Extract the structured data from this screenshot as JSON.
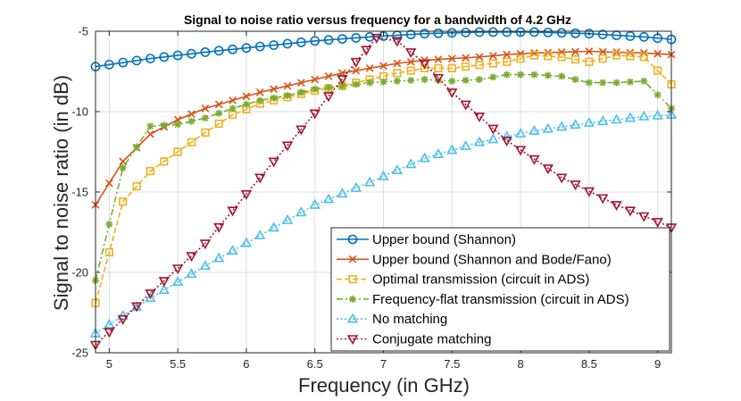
{
  "chart_data": {
    "type": "line",
    "title": "Signal to noise ratio versus frequency for a bandwidth of 4.2 GHz",
    "xlabel": "Frequency (in GHz)",
    "ylabel": "Signal to noise ratio (in dB)",
    "xlim": [
      4.9,
      9.1
    ],
    "ylim": [
      -25,
      -5
    ],
    "xticks": [
      5,
      5.5,
      6,
      6.5,
      7,
      7.5,
      8,
      8.5,
      9
    ],
    "xtick_labels": [
      "5",
      "5.5",
      "6",
      "6.5",
      "7",
      "7.5",
      "8",
      "8.5",
      "9"
    ],
    "yticks": [
      -25,
      -20,
      -15,
      -10,
      -5
    ],
    "ytick_labels": [
      "-25",
      "-20",
      "-15",
      "-10",
      "-5"
    ],
    "grid": true,
    "legend_position": "bottom-right",
    "series": [
      {
        "name": "Upper bound (Shannon)",
        "color": "#0072BD",
        "line": "solid",
        "marker": "circle",
        "x": [
          4.9,
          5.3,
          5.7,
          6.1,
          6.5,
          6.9,
          7.3,
          7.7,
          8.1,
          8.5,
          8.9,
          9.1
        ],
        "y": [
          -7.2,
          -6.7,
          -6.3,
          -5.95,
          -5.6,
          -5.35,
          -5.15,
          -5.05,
          -5.05,
          -5.15,
          -5.35,
          -5.5
        ]
      },
      {
        "name": "Upper bound (Shannon and Bode/Fano)",
        "color": "#D95319",
        "line": "solid",
        "marker": "x",
        "x": [
          4.9,
          5.1,
          5.3,
          5.5,
          5.7,
          5.9,
          6.1,
          6.3,
          6.5,
          6.7,
          6.9,
          7.1,
          7.3,
          7.5,
          7.7,
          7.9,
          8.1,
          8.3,
          8.5,
          8.7,
          8.9,
          9.1
        ],
        "y": [
          -15.8,
          -13.1,
          -11.4,
          -10.5,
          -9.8,
          -9.3,
          -8.8,
          -8.4,
          -8.0,
          -7.6,
          -7.3,
          -7.0,
          -6.8,
          -6.7,
          -6.6,
          -6.45,
          -6.35,
          -6.3,
          -6.25,
          -6.3,
          -6.35,
          -6.45
        ]
      },
      {
        "name": "Optimal transmission (circuit in ADS)",
        "color": "#EDB120",
        "line": "dashed",
        "marker": "square",
        "x": [
          4.9,
          5.1,
          5.3,
          5.5,
          5.7,
          5.9,
          6.1,
          6.3,
          6.5,
          6.7,
          6.9,
          7.1,
          7.3,
          7.5,
          7.7,
          7.9,
          8.1,
          8.3,
          8.5,
          8.7,
          8.9,
          9.1
        ],
        "y": [
          -21.9,
          -15.6,
          -13.7,
          -12.5,
          -11.3,
          -10.2,
          -9.5,
          -9.1,
          -8.7,
          -8.4,
          -8.0,
          -7.6,
          -7.3,
          -7.3,
          -7.1,
          -6.9,
          -6.5,
          -6.6,
          -6.9,
          -6.5,
          -6.6,
          -8.3
        ]
      },
      {
        "name": "Frequency-flat transmission (circuit in ADS)",
        "color": "#77AC30",
        "line": "dashdot",
        "marker": "star",
        "x": [
          4.9,
          5.1,
          5.3,
          5.5,
          5.7,
          5.9,
          6.1,
          6.3,
          6.5,
          6.7,
          6.9,
          7.1,
          7.3,
          7.5,
          7.7,
          7.9,
          8.1,
          8.3,
          8.5,
          8.7,
          8.9,
          9.1
        ],
        "y": [
          -20.5,
          -13.5,
          -10.9,
          -10.8,
          -10.4,
          -9.8,
          -9.3,
          -9.0,
          -8.6,
          -8.4,
          -8.2,
          -8.1,
          -8.0,
          -8.1,
          -8.0,
          -7.7,
          -7.7,
          -7.8,
          -8.2,
          -8.2,
          -8.1,
          -9.8
        ]
      },
      {
        "name": "No matching",
        "color": "#4DBEEE",
        "line": "dotted",
        "marker": "triangle-up",
        "x": [
          4.9,
          5.3,
          5.7,
          6.1,
          6.5,
          6.9,
          7.3,
          7.7,
          8.1,
          8.5,
          8.9,
          9.1
        ],
        "y": [
          -23.8,
          -21.6,
          -19.6,
          -17.7,
          -15.8,
          -14.4,
          -12.9,
          -11.9,
          -11.2,
          -10.7,
          -10.3,
          -10.2
        ]
      },
      {
        "name": "Conjugate matching",
        "color": "#A2142F",
        "line": "dotted",
        "marker": "triangle-down",
        "x": [
          4.9,
          5.3,
          5.7,
          6.1,
          6.5,
          6.8,
          6.95,
          7.1,
          7.3,
          7.5,
          7.9,
          8.3,
          8.7,
          9.1
        ],
        "y": [
          -24.5,
          -21.3,
          -18.2,
          -14.1,
          -10.1,
          -6.9,
          -5.4,
          -5.6,
          -7.0,
          -8.8,
          -11.8,
          -14.1,
          -15.8,
          -17.2
        ]
      }
    ]
  }
}
